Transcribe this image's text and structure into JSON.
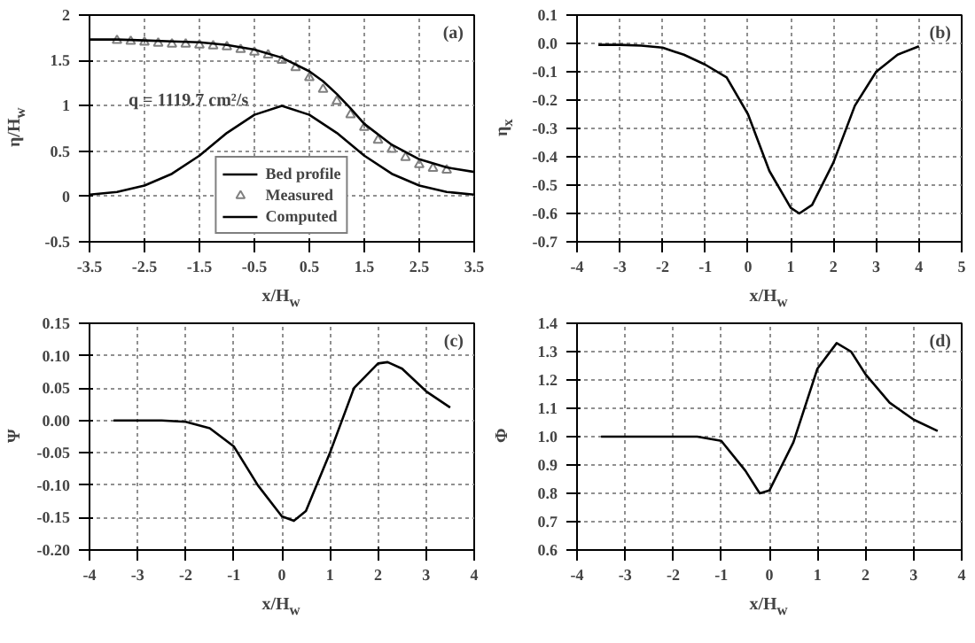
{
  "chart_data": [
    {
      "type": "line",
      "xlabel": "x/H$_{w}$",
      "ylabel": "η/H$_{w}$",
      "xlim": [
        -3.5,
        3.5
      ],
      "ylim": [
        -0.5,
        2
      ],
      "xticks": [
        -3.5,
        -2.5,
        -1.5,
        -0.5,
        0.5,
        1.5,
        2.5,
        3.5
      ],
      "yticks": [
        -0.5,
        0,
        0.5,
        1,
        1.5,
        2
      ],
      "grid": true,
      "legend": "bottom",
      "annotations": [
        "(a)",
        "q = 1119.7 cm²/s"
      ],
      "series": [
        {
          "name": "Bed profile",
          "type": "line",
          "color": "#000000",
          "x": [
            -3.5,
            -3,
            -2.5,
            -2,
            -1.5,
            -1,
            -0.5,
            0,
            0.5,
            1,
            1.5,
            2,
            2.5,
            3,
            3.5
          ],
          "values": [
            0.02,
            0.05,
            0.12,
            0.25,
            0.45,
            0.7,
            0.9,
            1.0,
            0.9,
            0.7,
            0.45,
            0.25,
            0.12,
            0.05,
            0.02
          ]
        },
        {
          "name": "Measured",
          "type": "scatter",
          "marker": "triangle",
          "color": "#808080",
          "x": [
            -3,
            -2.75,
            -2.5,
            -2.25,
            -2,
            -1.75,
            -1.5,
            -1.25,
            -1,
            -0.75,
            -0.5,
            -0.25,
            0,
            0.25,
            0.5,
            0.75,
            1,
            1.25,
            1.5,
            1.75,
            2,
            2.25,
            2.5,
            2.75,
            3
          ],
          "values": [
            1.72,
            1.71,
            1.7,
            1.69,
            1.68,
            1.68,
            1.67,
            1.66,
            1.65,
            1.62,
            1.59,
            1.56,
            1.5,
            1.42,
            1.31,
            1.18,
            1.05,
            0.9,
            0.76,
            0.62,
            0.52,
            0.43,
            0.35,
            0.31,
            0.29
          ]
        },
        {
          "name": "Computed",
          "type": "line",
          "color": "#000000",
          "x": [
            -3.5,
            -3,
            -2.5,
            -2,
            -1.5,
            -1,
            -0.5,
            0,
            0.5,
            0.75,
            1,
            1.25,
            1.5,
            2,
            2.5,
            3,
            3.5
          ],
          "values": [
            1.73,
            1.73,
            1.72,
            1.71,
            1.7,
            1.67,
            1.62,
            1.53,
            1.38,
            1.27,
            1.13,
            0.97,
            0.8,
            0.57,
            0.41,
            0.32,
            0.27
          ]
        }
      ]
    },
    {
      "type": "line",
      "xlabel": "x/H$_{w}$",
      "ylabel": "η$_{x}$",
      "xlim": [
        -4,
        5
      ],
      "ylim": [
        -0.7,
        0.1
      ],
      "xticks": [
        -4,
        -3,
        -2,
        -1,
        0,
        1,
        2,
        3,
        4,
        5
      ],
      "yticks": [
        0.1,
        {
          "value": 0,
          "label": "0.0"
        },
        -0.1,
        -0.2,
        -0.3,
        -0.4,
        -0.5,
        -0.6,
        -0.7
      ],
      "grid": true,
      "annotations": [
        "(b)"
      ],
      "series": [
        {
          "color": "#000000",
          "x": [
            -3.5,
            -3,
            -2.5,
            -2,
            -1.5,
            -1,
            -0.5,
            0,
            0.5,
            1,
            1.2,
            1.5,
            2,
            2.5,
            3,
            3.5,
            4
          ],
          "values": [
            -0.005,
            -0.005,
            -0.008,
            -0.015,
            -0.04,
            -0.075,
            -0.12,
            -0.25,
            -0.45,
            -0.58,
            -0.6,
            -0.57,
            -0.42,
            -0.22,
            -0.1,
            -0.04,
            -0.01
          ]
        }
      ]
    },
    {
      "type": "line",
      "xlabel": "x/H$_{w}$",
      "ylabel": "Ψ",
      "xlim": [
        -4,
        4
      ],
      "ylim": [
        -0.2,
        0.15
      ],
      "xticks": [
        -4,
        -3,
        -2,
        -1,
        0,
        1,
        2,
        3,
        4
      ],
      "yticks": [
        {
          "value": 0.15,
          "label": "0.15"
        },
        {
          "value": 0.1,
          "label": "0.10"
        },
        {
          "value": 0.05,
          "label": "0.05"
        },
        {
          "value": 0,
          "label": "0.00"
        },
        {
          "value": -0.05,
          "label": "-0.05"
        },
        {
          "value": -0.1,
          "label": "-0.10"
        },
        {
          "value": -0.15,
          "label": "-0.15"
        },
        {
          "value": -0.2,
          "label": "-0.20"
        }
      ],
      "grid": true,
      "annotations": [
        "(c)"
      ],
      "series": [
        {
          "color": "#000000",
          "x": [
            -3.5,
            -3,
            -2.5,
            -2,
            -1.5,
            -1,
            -0.5,
            0,
            0.25,
            0.5,
            1,
            1.5,
            2,
            2.2,
            2.5,
            3,
            3.5
          ],
          "values": [
            0,
            0,
            0,
            -0.002,
            -0.012,
            -0.04,
            -0.1,
            -0.148,
            -0.155,
            -0.14,
            -0.05,
            0.05,
            0.088,
            0.09,
            0.08,
            0.045,
            0.02
          ]
        }
      ]
    },
    {
      "type": "line",
      "xlabel": "x/H$_{w}$",
      "ylabel": "Φ",
      "xlim": [
        -4,
        4
      ],
      "ylim": [
        0.6,
        1.4
      ],
      "xticks": [
        -4,
        -3,
        -2,
        -1,
        0,
        1,
        2,
        3,
        4
      ],
      "yticks": [
        0.6,
        0.7,
        0.8,
        0.9,
        {
          "value": 1,
          "label": "1.0"
        },
        1.1,
        1.2,
        1.3,
        1.4
      ],
      "grid": true,
      "annotations": [
        "(d)"
      ],
      "series": [
        {
          "color": "#000000",
          "x": [
            -3.5,
            -3,
            -2,
            -1.5,
            -1,
            -0.5,
            -0.2,
            0,
            0.5,
            1,
            1.4,
            1.7,
            2,
            2.5,
            3,
            3.5
          ],
          "values": [
            1,
            1,
            1,
            1,
            0.985,
            0.88,
            0.8,
            0.81,
            0.98,
            1.24,
            1.33,
            1.3,
            1.22,
            1.12,
            1.06,
            1.02
          ]
        }
      ]
    }
  ]
}
